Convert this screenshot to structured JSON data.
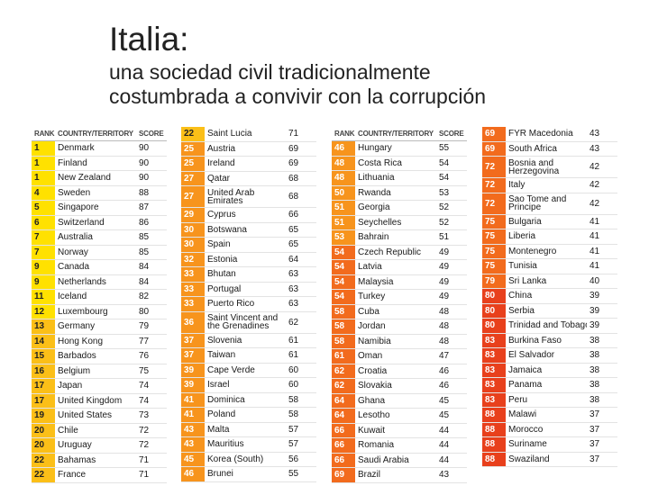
{
  "title": "Italia:",
  "subtitle_line1": "una sociedad civil tradicionalmente",
  "subtitle_line2": "costumbrada a convivir con la corrupción",
  "headers": {
    "rank": "RANK",
    "country": "COUNTRY/TERRITORY",
    "score": "SCORE"
  },
  "colors": {
    "tier1": "#ffe100",
    "tier2": "#fbbf18",
    "tier3": "#f7941d",
    "tier4": "#f26b1d",
    "tier5": "#e8401c"
  },
  "columns": [
    [
      {
        "rank": "1",
        "country": "Denmark",
        "score": "90"
      },
      {
        "rank": "1",
        "country": "Finland",
        "score": "90"
      },
      {
        "rank": "1",
        "country": "New Zealand",
        "score": "90"
      },
      {
        "rank": "4",
        "country": "Sweden",
        "score": "88"
      },
      {
        "rank": "5",
        "country": "Singapore",
        "score": "87"
      },
      {
        "rank": "6",
        "country": "Switzerland",
        "score": "86"
      },
      {
        "rank": "7",
        "country": "Australia",
        "score": "85"
      },
      {
        "rank": "7",
        "country": "Norway",
        "score": "85"
      },
      {
        "rank": "9",
        "country": "Canada",
        "score": "84"
      },
      {
        "rank": "9",
        "country": "Netherlands",
        "score": "84"
      },
      {
        "rank": "11",
        "country": "Iceland",
        "score": "82"
      },
      {
        "rank": "12",
        "country": "Luxembourg",
        "score": "80"
      },
      {
        "rank": "13",
        "country": "Germany",
        "score": "79"
      },
      {
        "rank": "14",
        "country": "Hong Kong",
        "score": "77"
      },
      {
        "rank": "15",
        "country": "Barbados",
        "score": "76"
      },
      {
        "rank": "16",
        "country": "Belgium",
        "score": "75"
      },
      {
        "rank": "17",
        "country": "Japan",
        "score": "74"
      },
      {
        "rank": "17",
        "country": "United Kingdom",
        "score": "74"
      },
      {
        "rank": "19",
        "country": "United States",
        "score": "73"
      },
      {
        "rank": "20",
        "country": "Chile",
        "score": "72"
      },
      {
        "rank": "20",
        "country": "Uruguay",
        "score": "72"
      },
      {
        "rank": "22",
        "country": "Bahamas",
        "score": "71"
      },
      {
        "rank": "22",
        "country": "France",
        "score": "71"
      }
    ],
    [
      {
        "rank": "22",
        "country": "Saint Lucia",
        "score": "71"
      },
      {
        "rank": "25",
        "country": "Austria",
        "score": "69"
      },
      {
        "rank": "25",
        "country": "Ireland",
        "score": "69"
      },
      {
        "rank": "27",
        "country": "Qatar",
        "score": "68"
      },
      {
        "rank": "27",
        "country": "United Arab Emirates",
        "score": "68"
      },
      {
        "rank": "29",
        "country": "Cyprus",
        "score": "66"
      },
      {
        "rank": "30",
        "country": "Botswana",
        "score": "65"
      },
      {
        "rank": "30",
        "country": "Spain",
        "score": "65"
      },
      {
        "rank": "32",
        "country": "Estonia",
        "score": "64"
      },
      {
        "rank": "33",
        "country": "Bhutan",
        "score": "63"
      },
      {
        "rank": "33",
        "country": "Portugal",
        "score": "63"
      },
      {
        "rank": "33",
        "country": "Puerto Rico",
        "score": "63"
      },
      {
        "rank": "36",
        "country": "Saint Vincent and the Grenadines",
        "score": "62"
      },
      {
        "rank": "37",
        "country": "Slovenia",
        "score": "61"
      },
      {
        "rank": "37",
        "country": "Taiwan",
        "score": "61"
      },
      {
        "rank": "39",
        "country": "Cape Verde",
        "score": "60"
      },
      {
        "rank": "39",
        "country": "Israel",
        "score": "60"
      },
      {
        "rank": "41",
        "country": "Dominica",
        "score": "58"
      },
      {
        "rank": "41",
        "country": "Poland",
        "score": "58"
      },
      {
        "rank": "43",
        "country": "Malta",
        "score": "57"
      },
      {
        "rank": "43",
        "country": "Mauritius",
        "score": "57"
      },
      {
        "rank": "45",
        "country": "Korea (South)",
        "score": "56"
      },
      {
        "rank": "46",
        "country": "Brunei",
        "score": "55"
      }
    ],
    [
      {
        "rank": "46",
        "country": "Hungary",
        "score": "55"
      },
      {
        "rank": "48",
        "country": "Costa Rica",
        "score": "54"
      },
      {
        "rank": "48",
        "country": "Lithuania",
        "score": "54"
      },
      {
        "rank": "50",
        "country": "Rwanda",
        "score": "53"
      },
      {
        "rank": "51",
        "country": "Georgia",
        "score": "52"
      },
      {
        "rank": "51",
        "country": "Seychelles",
        "score": "52"
      },
      {
        "rank": "53",
        "country": "Bahrain",
        "score": "51"
      },
      {
        "rank": "54",
        "country": "Czech Republic",
        "score": "49"
      },
      {
        "rank": "54",
        "country": "Latvia",
        "score": "49"
      },
      {
        "rank": "54",
        "country": "Malaysia",
        "score": "49"
      },
      {
        "rank": "54",
        "country": "Turkey",
        "score": "49"
      },
      {
        "rank": "58",
        "country": "Cuba",
        "score": "48"
      },
      {
        "rank": "58",
        "country": "Jordan",
        "score": "48"
      },
      {
        "rank": "58",
        "country": "Namibia",
        "score": "48"
      },
      {
        "rank": "61",
        "country": "Oman",
        "score": "47"
      },
      {
        "rank": "62",
        "country": "Croatia",
        "score": "46"
      },
      {
        "rank": "62",
        "country": "Slovakia",
        "score": "46"
      },
      {
        "rank": "64",
        "country": "Ghana",
        "score": "45"
      },
      {
        "rank": "64",
        "country": "Lesotho",
        "score": "45"
      },
      {
        "rank": "66",
        "country": "Kuwait",
        "score": "44"
      },
      {
        "rank": "66",
        "country": "Romania",
        "score": "44"
      },
      {
        "rank": "66",
        "country": "Saudi Arabia",
        "score": "44"
      },
      {
        "rank": "69",
        "country": "Brazil",
        "score": "43"
      }
    ],
    [
      {
        "rank": "69",
        "country": "FYR Macedonia",
        "score": "43"
      },
      {
        "rank": "69",
        "country": "South Africa",
        "score": "43"
      },
      {
        "rank": "72",
        "country": "Bosnia and Herzegovina",
        "score": "42"
      },
      {
        "rank": "72",
        "country": "Italy",
        "score": "42"
      },
      {
        "rank": "72",
        "country": "Sao Tome and Principe",
        "score": "42"
      },
      {
        "rank": "75",
        "country": "Bulgaria",
        "score": "41"
      },
      {
        "rank": "75",
        "country": "Liberia",
        "score": "41"
      },
      {
        "rank": "75",
        "country": "Montenegro",
        "score": "41"
      },
      {
        "rank": "75",
        "country": "Tunisia",
        "score": "41"
      },
      {
        "rank": "79",
        "country": "Sri Lanka",
        "score": "40"
      },
      {
        "rank": "80",
        "country": "China",
        "score": "39"
      },
      {
        "rank": "80",
        "country": "Serbia",
        "score": "39"
      },
      {
        "rank": "80",
        "country": "Trinidad and Tobago",
        "score": "39"
      },
      {
        "rank": "83",
        "country": "Burkina Faso",
        "score": "38"
      },
      {
        "rank": "83",
        "country": "El Salvador",
        "score": "38"
      },
      {
        "rank": "83",
        "country": "Jamaica",
        "score": "38"
      },
      {
        "rank": "83",
        "country": "Panama",
        "score": "38"
      },
      {
        "rank": "83",
        "country": "Peru",
        "score": "38"
      },
      {
        "rank": "88",
        "country": "Malawi",
        "score": "37"
      },
      {
        "rank": "88",
        "country": "Morocco",
        "score": "37"
      },
      {
        "rank": "88",
        "country": "Suriname",
        "score": "37"
      },
      {
        "rank": "88",
        "country": "Swaziland",
        "score": "37"
      }
    ]
  ]
}
